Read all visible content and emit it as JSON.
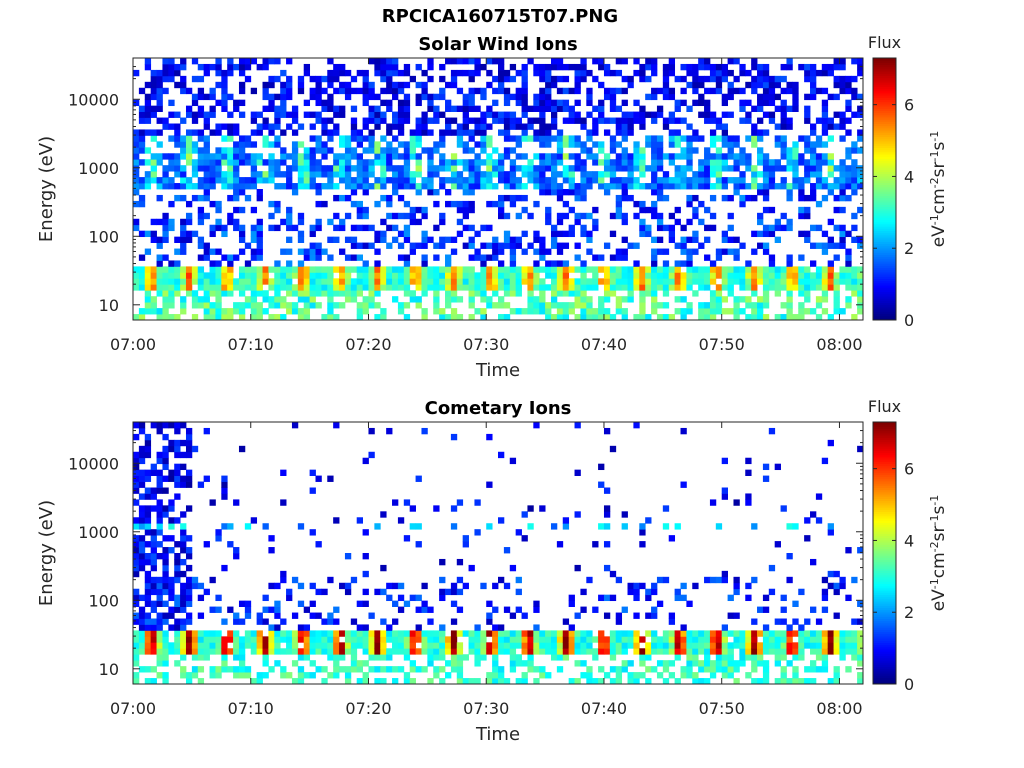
{
  "figure": {
    "title": "RPCICA160715T07.PNG"
  },
  "colormap": {
    "name": "jet",
    "stops": [
      "#00007f",
      "#0000ff",
      "#007fff",
      "#00ffff",
      "#7fff7f",
      "#ffff00",
      "#ff7f00",
      "#ff0000",
      "#7f0000"
    ]
  },
  "chart_data": [
    {
      "type": "heatmap",
      "title": "Solar Wind Ions",
      "xlabel": "Time",
      "ylabel": "Energy (eV)",
      "xlim": [
        "07:00",
        "08:02"
      ],
      "x_ticks": [
        "07:00",
        "07:10",
        "07:20",
        "07:30",
        "07:40",
        "07:50",
        "08:00"
      ],
      "y_scale": "log",
      "ylim": [
        6,
        40000
      ],
      "y_ticks": [
        "10",
        "100",
        "1000",
        "10000"
      ],
      "colorbar": {
        "label": "Flux",
        "unit_label": "eV-1cm-2sr-1s-1",
        "range": [
          0,
          7.3
        ],
        "ticks": [
          "0",
          "2",
          "4",
          "6"
        ]
      },
      "approx_flux_by_energy": [
        {
          "energy_eV": 10,
          "flux": 3.0
        },
        {
          "energy_eV": 25,
          "flux": 4.5
        },
        {
          "energy_eV": 100,
          "flux": 1.0
        },
        {
          "energy_eV": 1100,
          "flux": 3.5
        },
        {
          "energy_eV": 2500,
          "flux": 3.0
        },
        {
          "energy_eV": 10000,
          "flux": 1.0
        }
      ],
      "time_pattern": "periodic maxima near 25 eV and 1100 eV approximately every 3 min"
    },
    {
      "type": "heatmap",
      "title": "Cometary Ions",
      "xlabel": "Time",
      "ylabel": "Energy (eV)",
      "xlim": [
        "07:00",
        "08:02"
      ],
      "x_ticks": [
        "07:00",
        "07:10",
        "07:20",
        "07:30",
        "07:40",
        "07:50",
        "08:00"
      ],
      "y_scale": "log",
      "ylim": [
        6,
        40000
      ],
      "y_ticks": [
        "10",
        "100",
        "1000",
        "10000"
      ],
      "colorbar": {
        "label": "Flux",
        "unit_label": "eV-1cm-2sr-1s-1",
        "range": [
          0,
          7.3
        ],
        "ticks": [
          "0",
          "2",
          "4",
          "6"
        ]
      },
      "approx_flux_by_energy": [
        {
          "energy_eV": 10,
          "flux": 3.0
        },
        {
          "energy_eV": 25,
          "flux": 6.0
        },
        {
          "energy_eV": 100,
          "flux": 0.5
        },
        {
          "energy_eV": 1100,
          "flux": 2.5
        },
        {
          "energy_eV": 10000,
          "flux": 0.5
        }
      ],
      "time_pattern": "periodic maxima near 25 eV approximately every 3 min; broad high-energy band before 07:05"
    }
  ]
}
